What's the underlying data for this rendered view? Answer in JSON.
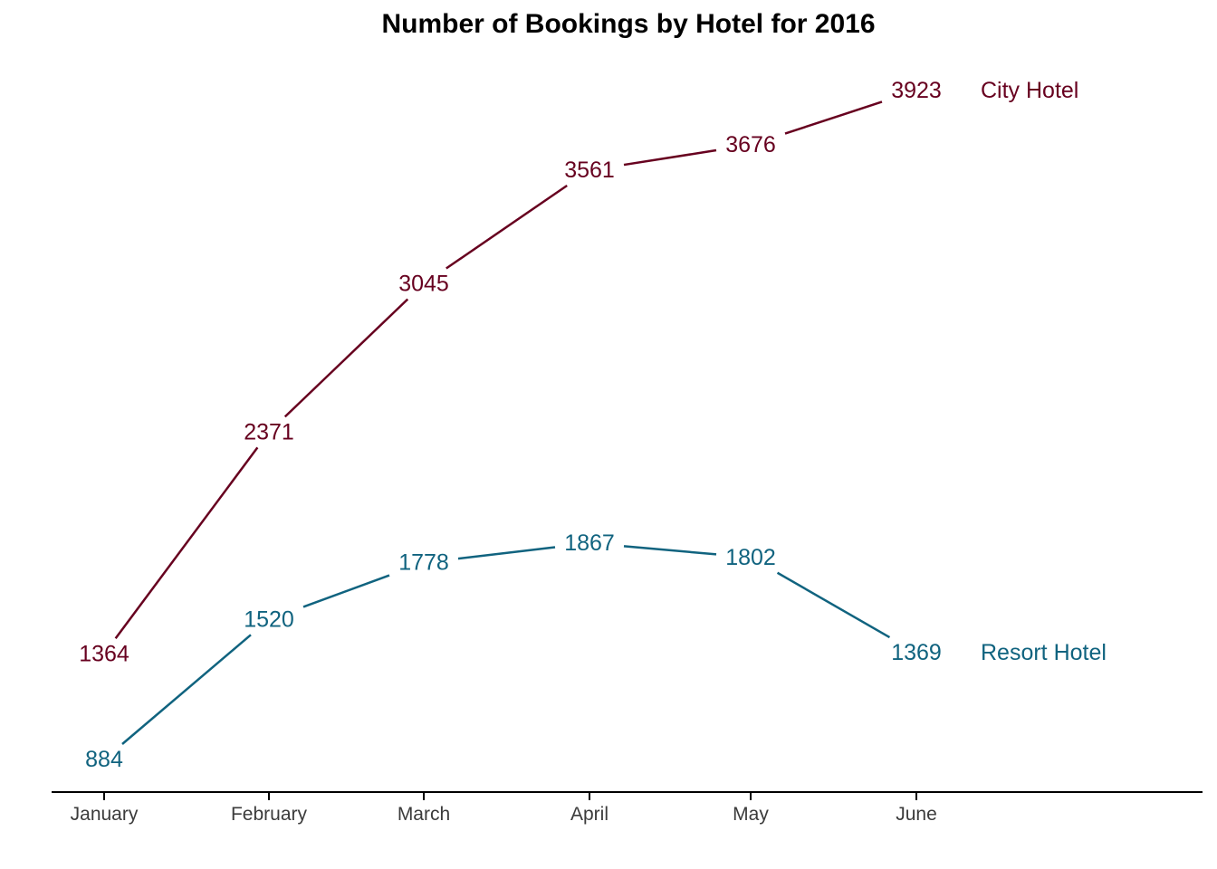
{
  "chart_data": {
    "type": "line",
    "title": "Number of Bookings by Hotel for 2016",
    "xlabel": "",
    "ylabel": "",
    "categories": [
      "January",
      "February",
      "March",
      "April",
      "May",
      "June"
    ],
    "ylim": [
      884,
      3923
    ],
    "grid": false,
    "legend": "direct labels at line ends (right)",
    "series": [
      {
        "name": "City Hotel",
        "color": "#67001f",
        "values": [
          1364,
          2371,
          3045,
          3561,
          3676,
          3923
        ]
      },
      {
        "name": "Resort Hotel",
        "color": "#10637f",
        "values": [
          884,
          1520,
          1778,
          1867,
          1802,
          1369
        ]
      }
    ]
  }
}
